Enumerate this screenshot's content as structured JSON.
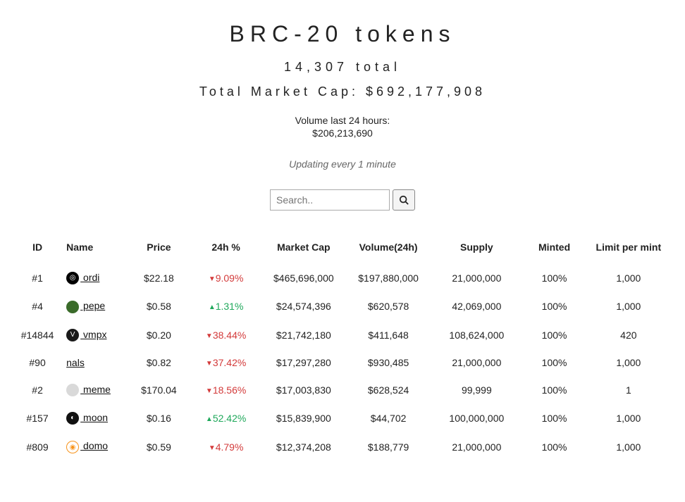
{
  "header": {
    "title": "BRC-20 tokens",
    "total_text": "14,307 total",
    "market_cap_text": "Total Market Cap: $692,177,908",
    "volume_label": "Volume last 24 hours:",
    "volume_value": "$206,213,690",
    "updating_text": "Updating every 1 minute"
  },
  "search": {
    "placeholder": "Search.."
  },
  "columns": [
    "ID",
    "Name",
    "Price",
    "24h %",
    "Market Cap",
    "Volume(24h)",
    "Supply",
    "Minted",
    "Limit per mint"
  ],
  "colors": {
    "up": "#1fa85b",
    "down": "#d33a3a",
    "text": "#222222",
    "background": "#ffffff"
  },
  "rows": [
    {
      "id": "#1",
      "name": "ordi",
      "icon_bg": "#000000",
      "icon_fg": "#ffffff",
      "icon_text": "◎",
      "has_icon": true,
      "price": "$22.18",
      "change": "9.09%",
      "dir": "down",
      "mcap": "$465,696,000",
      "vol": "$197,880,000",
      "supply": "21,000,000",
      "minted": "100%",
      "limit": "1,000"
    },
    {
      "id": "#4",
      "name": "pepe",
      "icon_bg": "#3a6b2a",
      "icon_fg": "#ffffff",
      "icon_text": "",
      "has_icon": true,
      "price": "$0.58",
      "change": "1.31%",
      "dir": "up",
      "mcap": "$24,574,396",
      "vol": "$620,578",
      "supply": "42,069,000",
      "minted": "100%",
      "limit": "1,000"
    },
    {
      "id": "#14844",
      "name": "vmpx",
      "icon_bg": "#1a1a1a",
      "icon_fg": "#ffffff",
      "icon_text": "V",
      "has_icon": true,
      "price": "$0.20",
      "change": "38.44%",
      "dir": "down",
      "mcap": "$21,742,180",
      "vol": "$411,648",
      "supply": "108,624,000",
      "minted": "100%",
      "limit": "420"
    },
    {
      "id": "#90",
      "name": "nals",
      "icon_bg": "",
      "icon_fg": "",
      "icon_text": "",
      "has_icon": false,
      "price": "$0.82",
      "change": "37.42%",
      "dir": "down",
      "mcap": "$17,297,280",
      "vol": "$930,485",
      "supply": "21,000,000",
      "minted": "100%",
      "limit": "1,000"
    },
    {
      "id": "#2",
      "name": "meme",
      "icon_bg": "#d9d9d9",
      "icon_fg": "#555",
      "icon_text": "",
      "has_icon": true,
      "price": "$170.04",
      "change": "18.56%",
      "dir": "down",
      "mcap": "$17,003,830",
      "vol": "$628,524",
      "supply": "99,999",
      "minted": "100%",
      "limit": "1"
    },
    {
      "id": "#157",
      "name": "moon",
      "icon_bg": "#111111",
      "icon_fg": "#ffffff",
      "icon_text": "◐",
      "has_icon": true,
      "price": "$0.16",
      "change": "52.42%",
      "dir": "up",
      "mcap": "$15,839,900",
      "vol": "$44,702",
      "supply": "100,000,000",
      "minted": "100%",
      "limit": "1,000"
    },
    {
      "id": "#809",
      "name": "domo",
      "icon_bg": "#ffffff",
      "icon_fg": "#f7931a",
      "icon_text": "◉",
      "has_icon": true,
      "price": "$0.59",
      "change": "4.79%",
      "dir": "down",
      "mcap": "$12,374,208",
      "vol": "$188,779",
      "supply": "21,000,000",
      "minted": "100%",
      "limit": "1,000"
    }
  ]
}
